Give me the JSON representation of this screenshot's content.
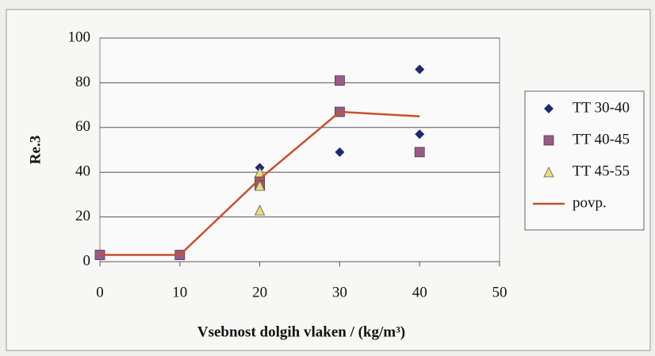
{
  "chart_data": {
    "type": "scatter",
    "xlabel": "Vsebnost dolgih vlaken / (kg/m³)",
    "ylabel": "Re.3",
    "xlim": [
      0,
      50
    ],
    "xticks": [
      0,
      10,
      20,
      30,
      40,
      50
    ],
    "ylim": [
      0,
      100
    ],
    "yticks": [
      0,
      20,
      40,
      60,
      80,
      100
    ],
    "grid": true,
    "legend": "right",
    "series": [
      {
        "name": "TT 30-40",
        "color": "#1f2a6e",
        "marker": "diamond",
        "x": [
          0,
          10,
          20,
          30,
          40,
          40
        ],
        "values": [
          3,
          3,
          42,
          49,
          86,
          57
        ]
      },
      {
        "name": "TT 40-45",
        "color": "#9a5a86",
        "marker": "square",
        "x": [
          0,
          10,
          20,
          20,
          30,
          30,
          40
        ],
        "values": [
          3,
          3,
          36,
          34,
          81,
          67,
          49
        ]
      },
      {
        "name": "TT 45-55",
        "color": "#e8e07a",
        "marker": "triangle",
        "x": [
          20,
          20,
          20
        ],
        "values": [
          40,
          34,
          23
        ]
      },
      {
        "name": "povp.",
        "color": "#c8502a",
        "marker": "line",
        "x": [
          0,
          10,
          20,
          30,
          40
        ],
        "values": [
          3,
          3,
          37,
          67,
          65
        ]
      }
    ]
  }
}
